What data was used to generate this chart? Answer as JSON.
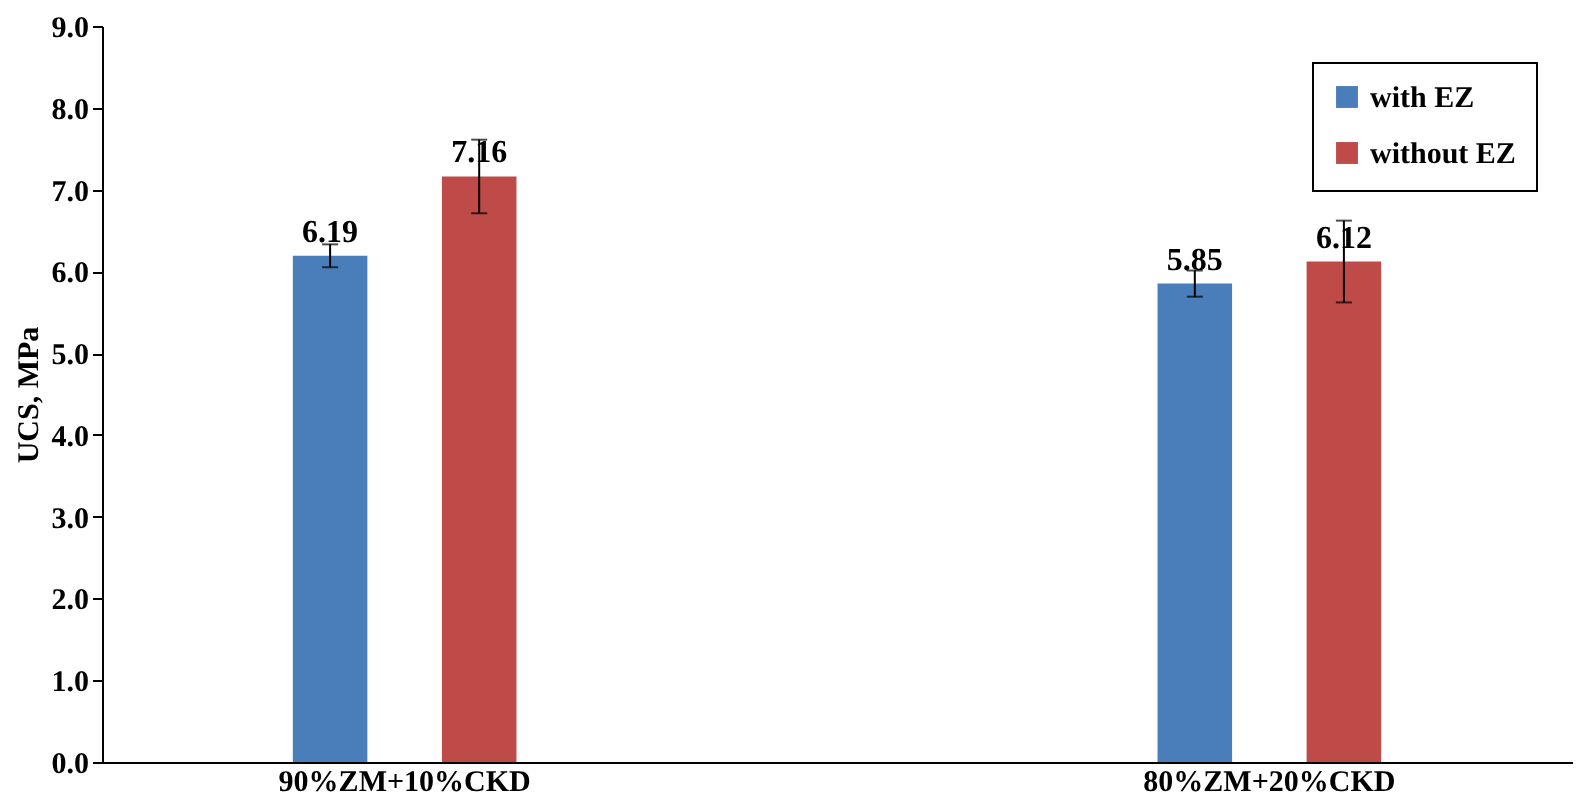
{
  "chart_data": {
    "type": "bar",
    "ylabel": "UCS, MPa",
    "categories": [
      "90%ZM+10%CKD",
      "80%ZM+20%CKD"
    ],
    "series": [
      {
        "name": "with EZ",
        "color": "#4a7ebb",
        "values": [
          6.19,
          5.85
        ],
        "errors": [
          0.14,
          0.16
        ]
      },
      {
        "name": "without EZ",
        "color": "#be4b48",
        "values": [
          7.16,
          6.12
        ],
        "errors": [
          0.45,
          0.5
        ]
      }
    ],
    "ylim": [
      0,
      9
    ],
    "yticks": [
      {
        "value": 0,
        "label": "0.0"
      },
      {
        "value": 1,
        "label": "1.0"
      },
      {
        "value": 2,
        "label": "2.0"
      },
      {
        "value": 3,
        "label": "3.0"
      },
      {
        "value": 4,
        "label": "4.0"
      },
      {
        "value": 5,
        "label": "5.0"
      },
      {
        "value": 6,
        "label": "6.0"
      },
      {
        "value": 7,
        "label": "7.0"
      },
      {
        "value": 8,
        "label": "8.0"
      },
      {
        "value": 9,
        "label": "9.0"
      }
    ],
    "data_labels": true,
    "grid": false,
    "legend": "top right"
  }
}
